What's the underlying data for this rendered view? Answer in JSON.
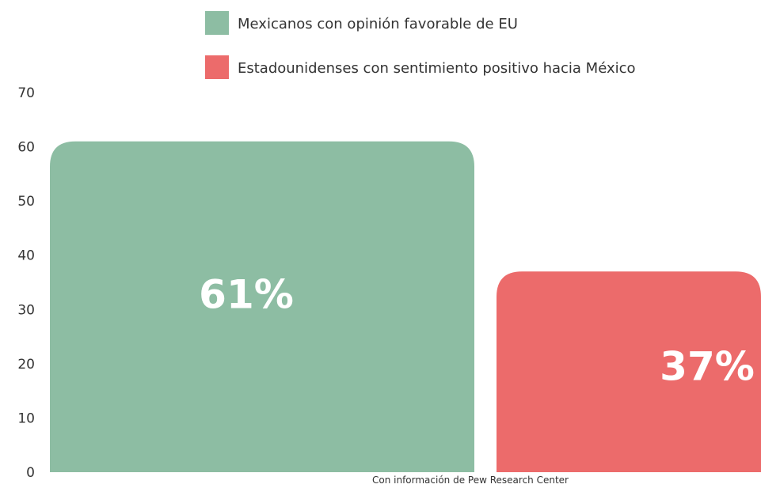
{
  "chart_data": {
    "type": "bar",
    "categories": [
      "Mexicanos con opinión favorable de EU",
      "Estadounidenses con sentimiento positivo hacia México"
    ],
    "values": [
      61,
      37
    ],
    "data_labels": [
      "61%",
      "37%"
    ],
    "colors": [
      "#8dbda3",
      "#ec6b6b"
    ],
    "title": "",
    "xlabel": "",
    "ylabel": "",
    "ylim": [
      0,
      70
    ],
    "yticks": [
      0,
      10,
      20,
      30,
      40,
      50,
      60,
      70
    ],
    "grid": false,
    "legend": {
      "position": "top",
      "entries": [
        "Mexicanos con opinión favorable de EU",
        "Estadounidenses con sentimiento positivo hacia México"
      ]
    },
    "source_note": "Con información de Pew Research Center"
  }
}
